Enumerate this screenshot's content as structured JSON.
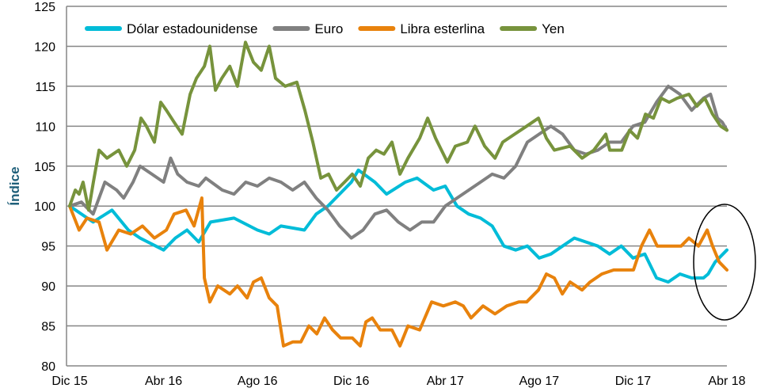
{
  "chart_data": {
    "type": "line",
    "title": "",
    "xlabel": "",
    "ylabel": "Índice",
    "ylim": [
      80,
      125
    ],
    "yticks": [
      80,
      85,
      90,
      95,
      100,
      105,
      110,
      115,
      120,
      125
    ],
    "xlim_months_from_dec15": [
      0,
      28
    ],
    "xticks": [
      {
        "label": "Dic 15",
        "month": 0
      },
      {
        "label": "Abr 16",
        "month": 4
      },
      {
        "label": "Ago 16",
        "month": 8
      },
      {
        "label": "Dic 16",
        "month": 12
      },
      {
        "label": "Abr 17",
        "month": 16
      },
      {
        "label": "Ago 17",
        "month": 20
      },
      {
        "label": "Dic 17",
        "month": 24
      },
      {
        "label": "Abr 18",
        "month": 28
      }
    ],
    "grid": true,
    "legend_position": "top-left",
    "annotation": "ellipse-highlight-latest",
    "series": [
      {
        "name": "Dólar estadounidense",
        "color": "#00bcd8",
        "points": [
          [
            0,
            100
          ],
          [
            1,
            98
          ],
          [
            1.8,
            99.5
          ],
          [
            2.5,
            97
          ],
          [
            3,
            96
          ],
          [
            4,
            94.5
          ],
          [
            4.5,
            96
          ],
          [
            5,
            97
          ],
          [
            5.5,
            95.5
          ],
          [
            6,
            98
          ],
          [
            7,
            98.5
          ],
          [
            8,
            97
          ],
          [
            8.5,
            96.5
          ],
          [
            9,
            97.5
          ],
          [
            10,
            97
          ],
          [
            10.5,
            99
          ],
          [
            11,
            100
          ],
          [
            12,
            103
          ],
          [
            12.3,
            104.5
          ],
          [
            13,
            103
          ],
          [
            13.5,
            101.5
          ],
          [
            14.3,
            103
          ],
          [
            14.8,
            103.5
          ],
          [
            15.5,
            102
          ],
          [
            16,
            102.5
          ],
          [
            16.5,
            100
          ],
          [
            17,
            99
          ],
          [
            17.5,
            98.5
          ],
          [
            18,
            97.5
          ],
          [
            18.5,
            95
          ],
          [
            19,
            94.5
          ],
          [
            19.5,
            95
          ],
          [
            20,
            93.5
          ],
          [
            20.5,
            94
          ],
          [
            21,
            95
          ],
          [
            21.5,
            96
          ],
          [
            22,
            95.5
          ],
          [
            22.5,
            95
          ],
          [
            23,
            94
          ],
          [
            23.5,
            95
          ],
          [
            24,
            93.5
          ],
          [
            24.5,
            94
          ],
          [
            25,
            91
          ],
          [
            25.5,
            90.5
          ],
          [
            26,
            91.5
          ],
          [
            26.5,
            91
          ],
          [
            27,
            91
          ],
          [
            27.2,
            91.5
          ],
          [
            27.5,
            93
          ],
          [
            28,
            94.5
          ]
        ]
      },
      {
        "name": "Euro",
        "color": "#808080",
        "points": [
          [
            0,
            100
          ],
          [
            0.5,
            100.5
          ],
          [
            1,
            99
          ],
          [
            1.5,
            103
          ],
          [
            2,
            102
          ],
          [
            2.3,
            101
          ],
          [
            2.7,
            103
          ],
          [
            3,
            105
          ],
          [
            3.5,
            104
          ],
          [
            4,
            103
          ],
          [
            4.3,
            106
          ],
          [
            4.6,
            104
          ],
          [
            5,
            103
          ],
          [
            5.5,
            102.5
          ],
          [
            5.8,
            103.5
          ],
          [
            6.5,
            102
          ],
          [
            7,
            101.5
          ],
          [
            7.5,
            103
          ],
          [
            8,
            102.5
          ],
          [
            8.5,
            103.5
          ],
          [
            9,
            103
          ],
          [
            9.5,
            102
          ],
          [
            10,
            103
          ],
          [
            10.5,
            101
          ],
          [
            11,
            99.5
          ],
          [
            11.5,
            97.5
          ],
          [
            12,
            96
          ],
          [
            12.5,
            97
          ],
          [
            13,
            99
          ],
          [
            13.5,
            99.5
          ],
          [
            14,
            98
          ],
          [
            14.5,
            97
          ],
          [
            15,
            98
          ],
          [
            15.5,
            98
          ],
          [
            16,
            100
          ],
          [
            16.5,
            101
          ],
          [
            17.5,
            103
          ],
          [
            18,
            104
          ],
          [
            18.5,
            103.5
          ],
          [
            19,
            105
          ],
          [
            19.5,
            108
          ],
          [
            20,
            109
          ],
          [
            20.5,
            110
          ],
          [
            21,
            109
          ],
          [
            21.5,
            107
          ],
          [
            22,
            106.5
          ],
          [
            22.5,
            107
          ],
          [
            23,
            108
          ],
          [
            23.5,
            108
          ],
          [
            24,
            110
          ],
          [
            24.5,
            110.5
          ],
          [
            25,
            113
          ],
          [
            25.5,
            115
          ],
          [
            26,
            114
          ],
          [
            26.5,
            112
          ],
          [
            27,
            113.5
          ],
          [
            27.3,
            114
          ],
          [
            27.6,
            111
          ],
          [
            27.8,
            110.5
          ],
          [
            28,
            109.5
          ]
        ]
      },
      {
        "name": "Libra esterlina",
        "color": "#e8820c",
        "points": [
          [
            0,
            100
          ],
          [
            0.4,
            97
          ],
          [
            0.74,
            98.5
          ],
          [
            1.25,
            98
          ],
          [
            1.59,
            94.5
          ],
          [
            2.09,
            97
          ],
          [
            2.6,
            96.5
          ],
          [
            3.1,
            97.5
          ],
          [
            3.61,
            96
          ],
          [
            4.12,
            97
          ],
          [
            4.45,
            99
          ],
          [
            4.96,
            99.5
          ],
          [
            5.3,
            97.5
          ],
          [
            5.63,
            101
          ],
          [
            5.74,
            91
          ],
          [
            5.97,
            88
          ],
          [
            6.31,
            90
          ],
          [
            6.82,
            89
          ],
          [
            7.15,
            90
          ],
          [
            7.56,
            88.5
          ],
          [
            7.83,
            90.5
          ],
          [
            8.16,
            91
          ],
          [
            8.5,
            88.5
          ],
          [
            8.84,
            87.5
          ],
          [
            9.11,
            82.5
          ],
          [
            9.51,
            83
          ],
          [
            9.85,
            83
          ],
          [
            10.19,
            85
          ],
          [
            10.53,
            84
          ],
          [
            10.86,
            86
          ],
          [
            11.2,
            84.5
          ],
          [
            11.54,
            83.5
          ],
          [
            12.04,
            83.5
          ],
          [
            12.38,
            82.5
          ],
          [
            12.62,
            85.5
          ],
          [
            12.89,
            86
          ],
          [
            13.23,
            84.5
          ],
          [
            13.73,
            84.5
          ],
          [
            14.07,
            82.5
          ],
          [
            14.41,
            85
          ],
          [
            14.91,
            84.5
          ],
          [
            15.42,
            88
          ],
          [
            15.92,
            87.5
          ],
          [
            16.43,
            88
          ],
          [
            16.77,
            87.5
          ],
          [
            17.1,
            86
          ],
          [
            17.61,
            87.5
          ],
          [
            18.12,
            86.5
          ],
          [
            18.62,
            87.5
          ],
          [
            19.13,
            88
          ],
          [
            19.47,
            88
          ],
          [
            19.97,
            89.5
          ],
          [
            20.31,
            91.5
          ],
          [
            20.65,
            91
          ],
          [
            20.99,
            89
          ],
          [
            21.32,
            90.5
          ],
          [
            21.83,
            89.5
          ],
          [
            22.17,
            90.5
          ],
          [
            22.67,
            91.5
          ],
          [
            23.18,
            92
          ],
          [
            23.68,
            92
          ],
          [
            24.02,
            92
          ],
          [
            24.36,
            95
          ],
          [
            24.7,
            97
          ],
          [
            25.03,
            95
          ],
          [
            25.54,
            95
          ],
          [
            26.05,
            95
          ],
          [
            26.38,
            96
          ],
          [
            26.79,
            95
          ],
          [
            27.16,
            97
          ],
          [
            27.39,
            95
          ],
          [
            27.67,
            93
          ],
          [
            28,
            92
          ]
        ]
      },
      {
        "name": "Yen",
        "color": "#77933c",
        "points": [
          [
            0,
            100
          ],
          [
            0.24,
            102
          ],
          [
            0.4,
            101.5
          ],
          [
            0.57,
            103
          ],
          [
            0.81,
            99.5
          ],
          [
            1.01,
            103
          ],
          [
            1.25,
            107
          ],
          [
            1.59,
            106
          ],
          [
            2.09,
            107
          ],
          [
            2.43,
            105
          ],
          [
            2.77,
            107
          ],
          [
            3.04,
            111
          ],
          [
            3.27,
            110
          ],
          [
            3.61,
            108
          ],
          [
            3.88,
            113
          ],
          [
            4.12,
            112
          ],
          [
            4.45,
            110.5
          ],
          [
            4.79,
            109
          ],
          [
            5.13,
            114
          ],
          [
            5.4,
            116
          ],
          [
            5.74,
            117.5
          ],
          [
            5.97,
            120
          ],
          [
            6.21,
            114.5
          ],
          [
            6.48,
            116
          ],
          [
            6.82,
            117.5
          ],
          [
            7.15,
            115
          ],
          [
            7.49,
            120.5
          ],
          [
            7.83,
            118
          ],
          [
            8.16,
            117
          ],
          [
            8.5,
            120
          ],
          [
            8.77,
            116
          ],
          [
            9.18,
            115
          ],
          [
            9.68,
            115.5
          ],
          [
            10.02,
            112
          ],
          [
            10.36,
            108
          ],
          [
            10.7,
            103.5
          ],
          [
            11.03,
            104
          ],
          [
            11.37,
            102
          ],
          [
            11.71,
            103
          ],
          [
            12.04,
            104
          ],
          [
            12.38,
            102.5
          ],
          [
            12.72,
            106
          ],
          [
            13.06,
            107
          ],
          [
            13.39,
            106.5
          ],
          [
            13.73,
            108
          ],
          [
            14.07,
            104
          ],
          [
            14.41,
            106
          ],
          [
            14.91,
            108.5
          ],
          [
            15.25,
            111
          ],
          [
            15.59,
            108.5
          ],
          [
            16.09,
            105.5
          ],
          [
            16.43,
            107.5
          ],
          [
            16.94,
            108
          ],
          [
            17.27,
            110
          ],
          [
            17.68,
            107.5
          ],
          [
            18.12,
            106
          ],
          [
            18.45,
            108
          ],
          [
            18.96,
            109
          ],
          [
            19.47,
            110
          ],
          [
            19.97,
            111
          ],
          [
            20.31,
            108.5
          ],
          [
            20.65,
            107
          ],
          [
            21.32,
            107.5
          ],
          [
            21.83,
            106
          ],
          [
            22.33,
            107
          ],
          [
            22.84,
            109
          ],
          [
            23.01,
            107
          ],
          [
            23.52,
            107
          ],
          [
            23.85,
            109.5
          ],
          [
            24.19,
            108.5
          ],
          [
            24.53,
            111.5
          ],
          [
            24.87,
            111
          ],
          [
            25.2,
            113.5
          ],
          [
            25.54,
            113
          ],
          [
            25.88,
            113.5
          ],
          [
            26.38,
            114
          ],
          [
            26.72,
            112.5
          ],
          [
            27.06,
            113.5
          ],
          [
            27.39,
            111.5
          ],
          [
            27.73,
            110
          ],
          [
            28,
            109.5
          ]
        ]
      }
    ]
  }
}
